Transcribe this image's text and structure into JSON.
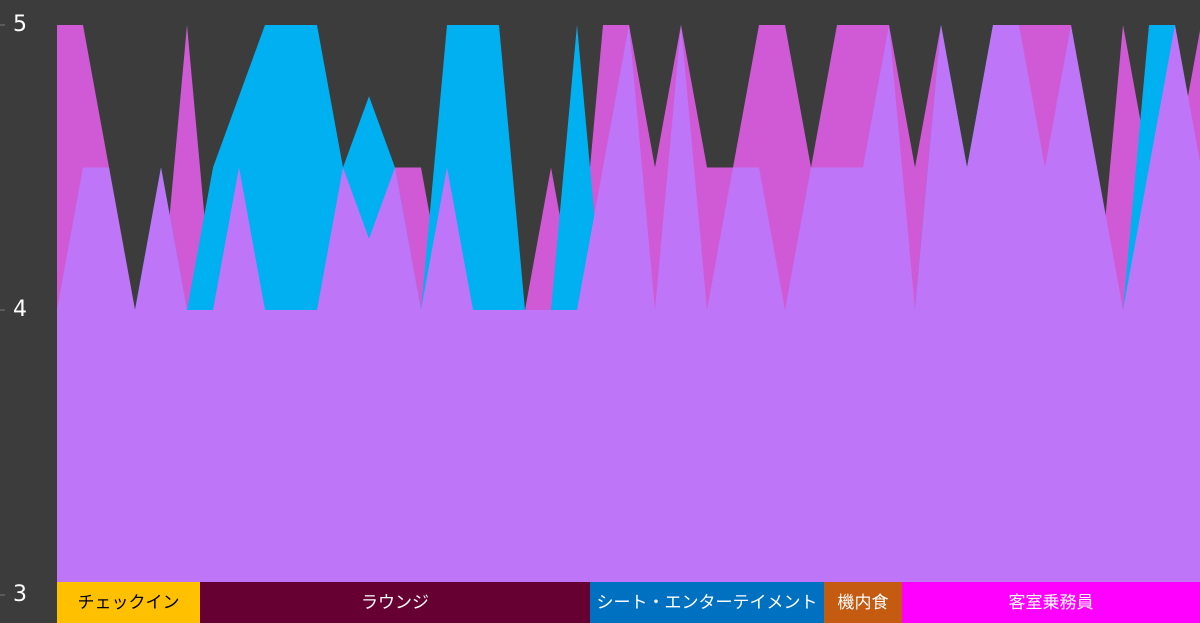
{
  "chart_data": {
    "type": "area",
    "ylim": [
      3,
      5
    ],
    "yticks": [
      3,
      4,
      5
    ],
    "series": [
      {
        "color": "#d05ad6",
        "values": [
          5,
          5,
          4.5,
          4,
          4,
          5,
          4,
          4,
          4,
          4,
          4,
          4,
          4,
          4.5,
          4.5,
          4,
          4,
          4,
          4,
          4.5,
          4,
          5,
          5,
          4.5,
          5,
          4.5,
          4.5,
          5,
          5,
          4.5,
          5,
          5,
          5,
          4.5,
          5,
          4.5,
          4.5,
          5,
          5,
          5,
          4,
          5,
          4.5,
          4.5,
          5
        ]
      },
      {
        "color": "#00b0f0",
        "values": [
          4,
          4,
          4,
          4,
          4.5,
          4,
          4.5,
          4.75,
          5,
          5,
          5,
          4.5,
          4.75,
          4.5,
          4,
          5,
          5,
          5,
          4,
          4,
          5,
          4,
          4,
          4,
          4,
          4,
          4,
          4,
          4,
          4,
          4,
          4,
          4,
          4,
          5,
          4.5,
          5,
          4,
          4,
          4,
          4,
          4,
          5,
          5,
          4
        ]
      },
      {
        "color": "#bf75f8",
        "values": [
          4,
          4.5,
          4.5,
          4,
          4.5,
          4,
          4,
          4.5,
          4,
          4,
          4,
          4.5,
          4.25,
          4.5,
          4,
          4.5,
          4,
          4,
          4,
          4,
          4,
          4.5,
          5,
          4,
          5,
          4,
          4.5,
          4.5,
          4,
          4.5,
          4.5,
          4.5,
          5,
          4,
          5,
          4.5,
          5,
          5,
          4.5,
          5,
          4.5,
          4,
          4.5,
          5,
          4.5
        ]
      }
    ],
    "groups": [
      {
        "label": "チェックイン",
        "count": 6,
        "color": "#ffc000",
        "text_color": "#000000"
      },
      {
        "label": "ラウンジ",
        "count": 15,
        "color": "#660033",
        "text_color": "#ffffff"
      },
      {
        "label": "シート・エンターテイメント",
        "count": 9,
        "color": "#0070c0",
        "text_color": "#ffffff"
      },
      {
        "label": "機内食",
        "count": 3,
        "color": "#c55a11",
        "text_color": "#ffffff"
      },
      {
        "label": "客室乗務員",
        "count": 12,
        "color": "#ff00ff",
        "text_color": "#ffffff"
      }
    ]
  }
}
